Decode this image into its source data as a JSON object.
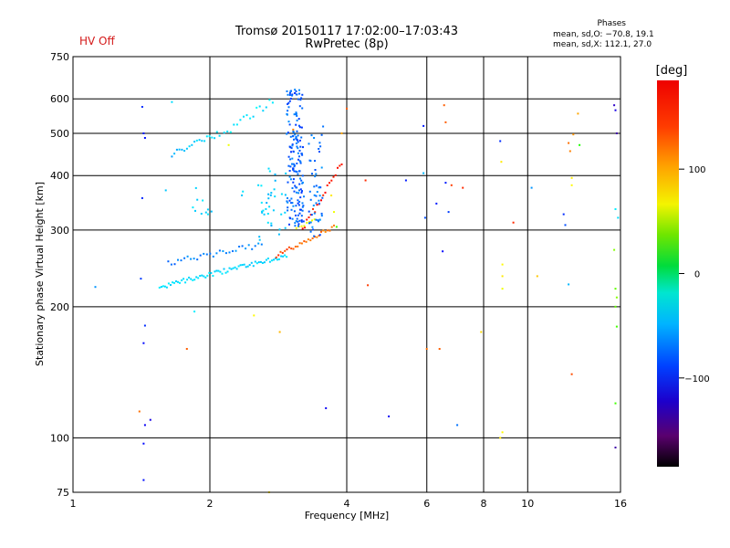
{
  "header": {
    "title_line1": "Tromsø 20150117 17:02:00–17:03:43",
    "title_line2": "RwPretec (8p)",
    "hv_status": "HV Off",
    "stats_title": "Phases",
    "stats_o": "mean, sd,O: −70.8, 19.1",
    "stats_x": "mean, sd,X: 112.1, 27.0"
  },
  "colorbar": {
    "label": "[deg]",
    "ticks": [
      {
        "value": 100,
        "label": "100"
      },
      {
        "value": 0,
        "label": "0"
      },
      {
        "value": -100,
        "label": "−100"
      }
    ],
    "range": [
      -185,
      185
    ]
  },
  "chart_data": {
    "type": "scatter",
    "xlabel": "Frequency [MHz]",
    "ylabel": "Stationary phase Virtual Height [km]",
    "xscale": "log",
    "yscale": "log",
    "xlim": [
      1,
      16
    ],
    "ylim": [
      75,
      750
    ],
    "xticks": [
      {
        "value": 1,
        "label": "1"
      },
      {
        "value": 2,
        "label": "2"
      },
      {
        "value": 4,
        "label": "4"
      },
      {
        "value": 6,
        "label": "6"
      },
      {
        "value": 8,
        "label": "8"
      },
      {
        "value": 10,
        "label": "10"
      },
      {
        "value": 16,
        "label": "16"
      }
    ],
    "xgrid": [
      2,
      4,
      6,
      8,
      10
    ],
    "yticks": [
      {
        "value": 75,
        "label": "75"
      },
      {
        "value": 100,
        "label": "100"
      },
      {
        "value": 200,
        "label": "200"
      },
      {
        "value": 300,
        "label": "300"
      },
      {
        "value": 400,
        "label": "400"
      },
      {
        "value": 500,
        "label": "500"
      },
      {
        "value": 600,
        "label": "600"
      },
      {
        "value": 750,
        "label": "750"
      }
    ],
    "ygrid": [
      100,
      200,
      300,
      400,
      500,
      600
    ],
    "grid": true,
    "colorscale": "phase",
    "traces": [
      {
        "f0": 1.55,
        "f1": 2.95,
        "h0": 222,
        "h1": 262,
        "n": 70,
        "c0": -58,
        "c1": -62,
        "jh": 0.012,
        "jc": 6
      },
      {
        "f0": 1.62,
        "f1": 2.6,
        "h0": 252,
        "h1": 278,
        "n": 30,
        "c0": -90,
        "c1": -80,
        "jh": 0.015,
        "jc": 10
      },
      {
        "f0": 1.65,
        "f1": 2.1,
        "h0": 448,
        "h1": 500,
        "n": 20,
        "c0": -70,
        "c1": -60,
        "jh": 0.015,
        "jc": 8
      },
      {
        "f0": 2.15,
        "f1": 2.75,
        "h0": 500,
        "h1": 595,
        "n": 16,
        "c0": -55,
        "c1": -55,
        "jh": 0.02,
        "jc": 8
      },
      {
        "f0": 2.8,
        "f1": 3.75,
        "h0": 262,
        "h1": 305,
        "n": 28,
        "c0": 148,
        "c1": 130,
        "jh": 0.01,
        "jc": 8
      },
      {
        "f0": 3.2,
        "f1": 3.9,
        "h0": 300,
        "h1": 430,
        "n": 20,
        "c0": 160,
        "c1": 165,
        "jh": 0.02,
        "jc": 10
      },
      {
        "f0": 3.1,
        "f1": 3.4,
        "h0": 300,
        "h1": 320,
        "n": 8,
        "c0": 95,
        "c1": 85,
        "jh": 0.01,
        "jc": 8
      }
    ],
    "clouds": [
      {
        "f0": 2.95,
        "f1": 3.22,
        "h0": 305,
        "h1": 630,
        "n": 170,
        "c": -95,
        "jc": 14
      },
      {
        "f0": 3.3,
        "f1": 3.55,
        "h0": 290,
        "h1": 520,
        "n": 50,
        "c": -90,
        "jc": 12
      },
      {
        "f0": 2.55,
        "f1": 2.95,
        "h0": 280,
        "h1": 420,
        "n": 35,
        "c": -65,
        "jc": 10
      },
      {
        "f0": 1.8,
        "f1": 2.4,
        "h0": 320,
        "h1": 380,
        "n": 12,
        "c": -60,
        "jc": 10
      }
    ],
    "points": [
      [
        1.42,
        575,
        -110
      ],
      [
        1.43,
        500,
        -115
      ],
      [
        1.44,
        488,
        -118
      ],
      [
        1.42,
        355,
        -112
      ],
      [
        1.41,
        232,
        -105
      ],
      [
        1.44,
        181,
        -110
      ],
      [
        1.43,
        165,
        -120
      ],
      [
        1.4,
        115,
        135
      ],
      [
        1.44,
        107,
        -125
      ],
      [
        1.48,
        110,
        -130
      ],
      [
        1.43,
        97,
        -120
      ],
      [
        1.43,
        80,
        -118
      ],
      [
        1.12,
        222,
        -80
      ],
      [
        1.6,
        370,
        -65
      ],
      [
        1.65,
        590,
        -60
      ],
      [
        1.85,
        195,
        -55
      ],
      [
        1.78,
        160,
        140
      ],
      [
        2.5,
        191,
        95
      ],
      [
        2.85,
        175,
        115
      ],
      [
        2.7,
        75,
        100
      ],
      [
        3.6,
        117,
        -125
      ],
      [
        4.0,
        570,
        140
      ],
      [
        4.4,
        390,
        155
      ],
      [
        4.45,
        224,
        150
      ],
      [
        4.95,
        112,
        -125
      ],
      [
        5.4,
        390,
        -115
      ],
      [
        5.9,
        405,
        -70
      ],
      [
        5.95,
        320,
        -100
      ],
      [
        5.9,
        520,
        -115
      ],
      [
        6.0,
        160,
        135
      ],
      [
        6.3,
        345,
        -115
      ],
      [
        6.4,
        160,
        140
      ],
      [
        6.5,
        268,
        -120
      ],
      [
        6.55,
        580,
        140
      ],
      [
        6.6,
        385,
        -115
      ],
      [
        6.6,
        530,
        140
      ],
      [
        6.7,
        330,
        -105
      ],
      [
        6.8,
        380,
        150
      ],
      [
        7.0,
        107,
        -90
      ],
      [
        7.2,
        375,
        155
      ],
      [
        7.9,
        175,
        105
      ],
      [
        8.7,
        480,
        -110
      ],
      [
        8.75,
        430,
        100
      ],
      [
        8.8,
        250,
        95
      ],
      [
        8.8,
        235,
        100
      ],
      [
        8.8,
        220,
        90
      ],
      [
        8.8,
        103,
        95
      ],
      [
        8.7,
        100,
        100
      ],
      [
        9.3,
        312,
        155
      ],
      [
        10.2,
        375,
        -80
      ],
      [
        10.5,
        235,
        110
      ],
      [
        12.0,
        326,
        -110
      ],
      [
        12.1,
        308,
        -100
      ],
      [
        12.3,
        475,
        135
      ],
      [
        12.4,
        455,
        130
      ],
      [
        12.5,
        395,
        100
      ],
      [
        12.5,
        380,
        95
      ],
      [
        12.3,
        225,
        -70
      ],
      [
        12.5,
        140,
        145
      ],
      [
        12.6,
        497,
        125
      ],
      [
        13.0,
        470,
        30
      ],
      [
        15.5,
        580,
        -140
      ],
      [
        15.6,
        565,
        -130
      ],
      [
        15.7,
        500,
        -150
      ],
      [
        15.6,
        335,
        -55
      ],
      [
        15.8,
        320,
        -60
      ],
      [
        15.6,
        220,
        50
      ],
      [
        15.7,
        210,
        60
      ],
      [
        15.6,
        200,
        50
      ],
      [
        15.7,
        180,
        40
      ],
      [
        15.6,
        120,
        40
      ],
      [
        15.6,
        95,
        -150
      ],
      [
        15.5,
        270,
        60
      ],
      [
        3.75,
        330,
        90
      ],
      [
        3.7,
        360,
        100
      ],
      [
        3.05,
        510,
        130
      ],
      [
        2.2,
        470,
        90
      ],
      [
        3.9,
        500,
        120
      ],
      [
        3.8,
        305,
        40
      ],
      [
        12.9,
        555,
        120
      ]
    ]
  }
}
